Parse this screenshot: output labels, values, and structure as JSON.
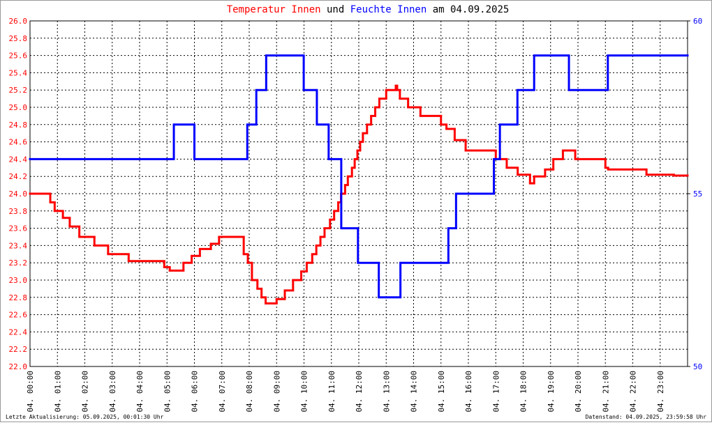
{
  "chart_data": {
    "type": "step",
    "title_parts": [
      "Temperatur Innen",
      "und",
      "Feuchte Innen",
      "am 04.09.2025"
    ],
    "footer_left": "Letzte Aktualisierung: 05.09.2025, 00:01:30 Uhr",
    "footer_right": "Datenstand: 04.09.2025, 23:59:58 Uhr",
    "grid": true,
    "xlim": [
      0,
      24
    ],
    "xticks": [
      {
        "value": 0,
        "label": "04. 00:00"
      },
      {
        "value": 1,
        "label": "04. 01:00"
      },
      {
        "value": 2,
        "label": "04. 02:00"
      },
      {
        "value": 3,
        "label": "04. 03:00"
      },
      {
        "value": 4,
        "label": "04. 04:00"
      },
      {
        "value": 5,
        "label": "04. 05:00"
      },
      {
        "value": 6,
        "label": "04. 06:00"
      },
      {
        "value": 7,
        "label": "04. 07:00"
      },
      {
        "value": 8,
        "label": "04. 08:00"
      },
      {
        "value": 9,
        "label": "04. 09:00"
      },
      {
        "value": 10,
        "label": "04. 10:00"
      },
      {
        "value": 11,
        "label": "04. 11:00"
      },
      {
        "value": 12,
        "label": "04. 12:00"
      },
      {
        "value": 13,
        "label": "04. 13:00"
      },
      {
        "value": 14,
        "label": "04. 14:00"
      },
      {
        "value": 15,
        "label": "04. 15:00"
      },
      {
        "value": 16,
        "label": "04. 16:00"
      },
      {
        "value": 17,
        "label": "04. 17:00"
      },
      {
        "value": 18,
        "label": "04. 18:00"
      },
      {
        "value": 19,
        "label": "04. 19:00"
      },
      {
        "value": 20,
        "label": "04. 20:00"
      },
      {
        "value": 21,
        "label": "04. 21:00"
      },
      {
        "value": 22,
        "label": "04. 22:00"
      },
      {
        "value": 23,
        "label": "04. 23:00"
      }
    ],
    "ylim": [
      22,
      26
    ],
    "yticks": [
      {
        "value": 22,
        "label": "22.0"
      },
      22.2,
      22.4,
      22.6,
      22.8,
      {
        "value": 23,
        "label": "23.0"
      },
      23.2,
      23.4,
      23.6,
      23.8,
      {
        "value": 24,
        "label": "24.0"
      },
      24.2,
      24.4,
      24.6,
      24.8,
      {
        "value": 25,
        "label": "25.0"
      },
      25.2,
      25.4,
      25.6,
      25.8,
      {
        "value": 26,
        "label": "26.0"
      }
    ],
    "y2lim": [
      50,
      60
    ],
    "y2ticks": [
      50,
      55,
      60
    ],
    "series": [
      {
        "name": "Temperatur Innen",
        "color": "#ff0000",
        "axis": "y",
        "x": [
          0,
          0.74,
          0.9,
          1.2,
          1.45,
          1.8,
          2.35,
          2.85,
          3.6,
          4.9,
          5.1,
          5.6,
          5.9,
          6.2,
          6.6,
          6.9,
          7.8,
          7.95,
          8.1,
          8.3,
          8.45,
          8.6,
          9.0,
          9.3,
          9.6,
          9.9,
          10.1,
          10.3,
          10.45,
          10.6,
          10.75,
          10.95,
          11.1,
          11.25,
          11.35,
          11.5,
          11.6,
          11.75,
          11.85,
          11.95,
          12.05,
          12.15,
          12.3,
          12.45,
          12.6,
          12.75,
          13.0,
          13.35,
          13.4,
          13.5,
          13.8,
          14.25,
          15.0,
          15.2,
          15.5,
          15.9,
          17.0,
          17.4,
          17.8,
          18.25,
          18.4,
          18.8,
          19.1,
          19.45,
          19.9,
          21.0,
          21.1,
          22.5,
          23.5
        ],
        "values": [
          24.0,
          23.9,
          23.8,
          23.72,
          23.62,
          23.5,
          23.4,
          23.3,
          23.22,
          23.15,
          23.11,
          23.2,
          23.28,
          23.36,
          23.42,
          23.5,
          23.3,
          23.2,
          23.0,
          22.9,
          22.8,
          22.73,
          22.78,
          22.88,
          23.0,
          23.1,
          23.2,
          23.3,
          23.4,
          23.5,
          23.6,
          23.7,
          23.8,
          23.9,
          24.0,
          24.1,
          24.2,
          24.3,
          24.4,
          24.5,
          24.6,
          24.7,
          24.8,
          24.9,
          25.0,
          25.1,
          25.2,
          25.25,
          25.2,
          25.1,
          25.0,
          24.9,
          24.8,
          24.75,
          24.62,
          24.5,
          24.4,
          24.3,
          24.22,
          24.12,
          24.2,
          24.28,
          24.4,
          24.5,
          24.4,
          24.3,
          24.28,
          24.22,
          24.21
        ]
      },
      {
        "name": "Feuchte Innen",
        "color": "#0000ff",
        "axis": "y2",
        "x": [
          0,
          5.25,
          6.0,
          7.93,
          8.26,
          8.62,
          9.99,
          10.47,
          10.9,
          11.36,
          11.97,
          12.73,
          13.52,
          15.27,
          15.55,
          16.93,
          17.15,
          17.79,
          18.4,
          19.67,
          21.09
        ],
        "values": [
          56,
          57,
          56,
          57,
          58,
          59,
          58,
          57,
          56,
          54,
          53,
          52,
          53,
          54,
          55,
          56,
          57,
          58,
          59,
          58,
          59
        ]
      }
    ]
  }
}
